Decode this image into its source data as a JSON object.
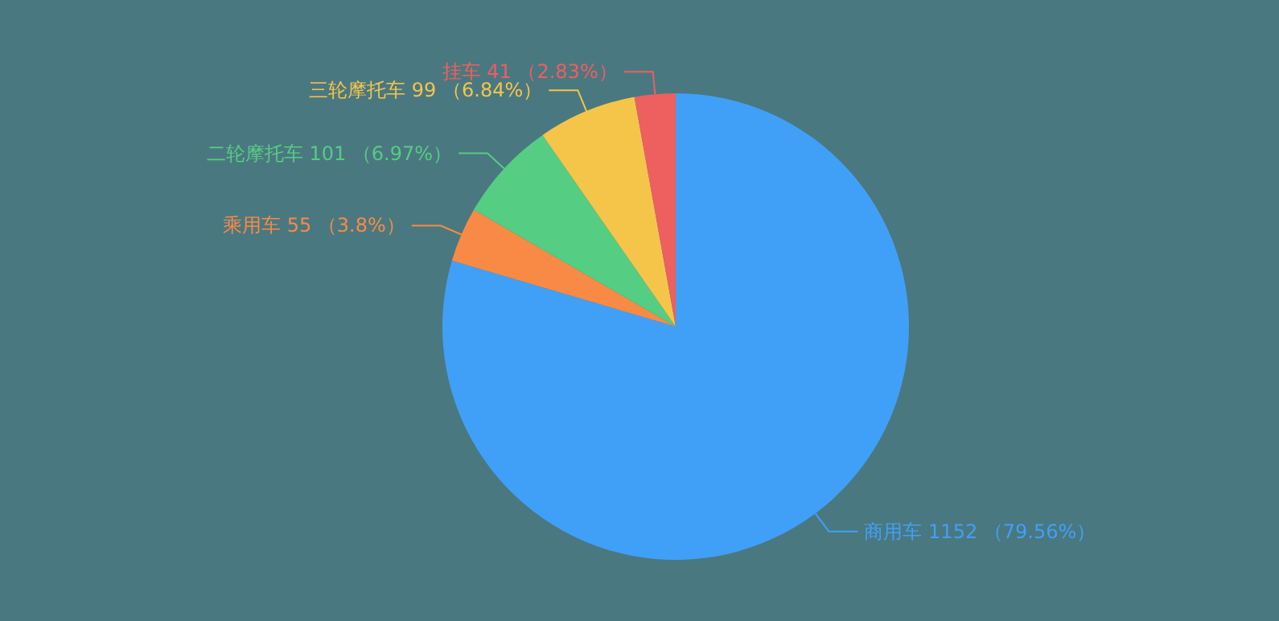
{
  "chart_data": {
    "type": "pie",
    "categories": [
      "商用车",
      "乘用车",
      "二轮摩托车",
      "三轮摩托车",
      "挂车"
    ],
    "values": [
      1152,
      55,
      101,
      99,
      41
    ],
    "value_labels": [
      "1152 （79.56%）",
      "55 （3.8%）",
      "101 （6.97%）",
      "99 （6.84%）",
      "41 （2.83%）"
    ],
    "colors": [
      "#40a0f8",
      "#f98a45",
      "#55cd82",
      "#f5c54a",
      "#ee5f5f"
    ],
    "legend": false
  }
}
